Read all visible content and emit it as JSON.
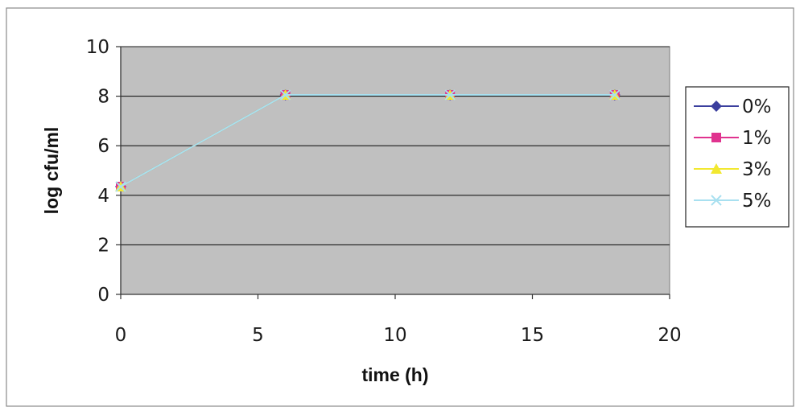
{
  "chart_data": {
    "type": "line",
    "title": "",
    "xlabel": "time  (h)",
    "ylabel": "log  cfu/ml",
    "xlim": [
      0,
      20
    ],
    "ylim": [
      0,
      10
    ],
    "xticks": [
      0,
      5,
      10,
      15,
      20
    ],
    "yticks": [
      0,
      2,
      4,
      6,
      8,
      10
    ],
    "grid": "horizontal",
    "plot_background": "#c0c0c0",
    "legend_position": "right",
    "x": [
      0,
      6,
      12,
      18
    ],
    "series": [
      {
        "name": "0%",
        "values": [
          4.35,
          8.05,
          8.05,
          8.05
        ],
        "color": "#3b3f9e",
        "marker": "diamond"
      },
      {
        "name": "1%",
        "values": [
          4.35,
          8.05,
          8.05,
          8.05
        ],
        "color": "#e0338f",
        "marker": "square"
      },
      {
        "name": "3%",
        "values": [
          4.35,
          8.05,
          8.05,
          8.05
        ],
        "color": "#f2e830",
        "marker": "triangle"
      },
      {
        "name": "5%",
        "values": [
          4.35,
          8.05,
          8.05,
          8.05
        ],
        "color": "#a8e0f0",
        "marker": "x"
      }
    ]
  }
}
